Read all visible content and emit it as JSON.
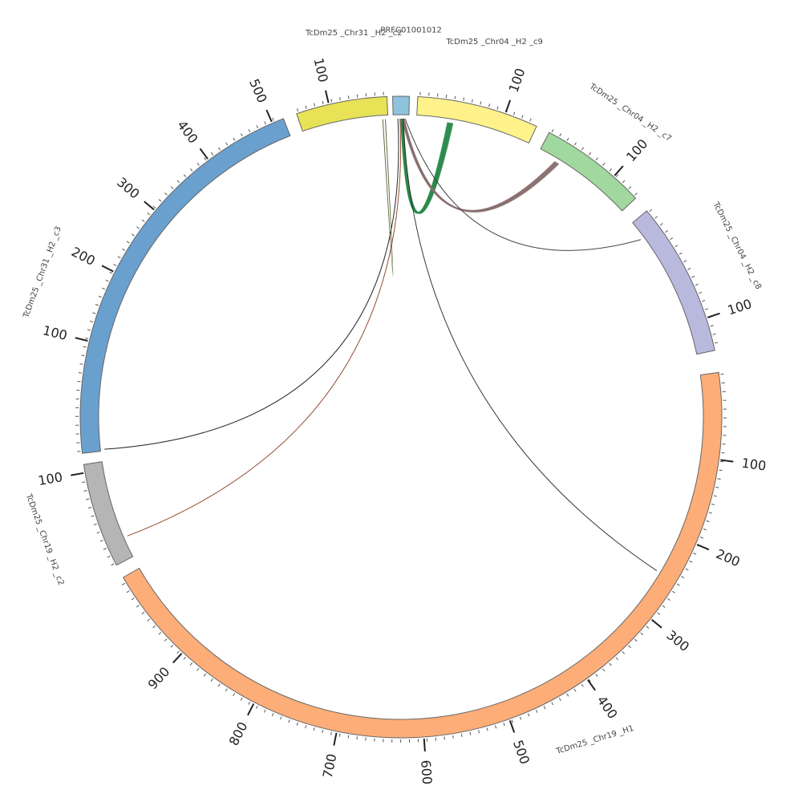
{
  "diagram": {
    "type": "circos",
    "segments": [
      {
        "id": "sc",
        "name": "PRFC01001012",
        "color": "#8ec3dd",
        "length": 12,
        "tick_labels": []
      },
      {
        "id": "c9",
        "name": "TcDm25 _Chr04 _H2 _c9",
        "color": "#fff28a",
        "length": 150,
        "tick_labels": [
          "100"
        ]
      },
      {
        "id": "c7",
        "name": "TcDm25 _Chr04 _H2 _c7",
        "color": "#a1d89f",
        "length": 120,
        "tick_labels": [
          "100"
        ]
      },
      {
        "id": "c8",
        "name": "TcDm25 _Chr04 _H2 _c8",
        "color": "#b9b8dd",
        "length": 160,
        "tick_labels": [
          "100"
        ]
      },
      {
        "id": "h1",
        "name": "TcDm25 _Chr19 _H1",
        "color": "#fdad78",
        "length": 1010,
        "tick_labels": [
          "100",
          "200",
          "300",
          "400",
          "500",
          "600",
          "700",
          "800",
          "900"
        ]
      },
      {
        "id": "c2b",
        "name": "TcDm25 _Chr19 _H2 _c2",
        "color": "#b5b5b5",
        "length": 130,
        "tick_labels": [
          "100"
        ]
      },
      {
        "id": "c3",
        "name": "TcDm25 _Chr31 _H2 _c3",
        "color": "#6aa0ce",
        "length": 560,
        "tick_labels": [
          "100",
          "200",
          "300",
          "400",
          "500"
        ]
      },
      {
        "id": "c2a",
        "name": "TcDm25 _Chr31 _H2 _c2",
        "color": "#e8e257",
        "length": 130,
        "tick_labels": [
          "100"
        ]
      }
    ],
    "links": [
      {
        "from": "sc",
        "to": "c9",
        "color": "#2a8a4a",
        "count": 6
      },
      {
        "from": "sc",
        "to": "c7",
        "color": "#8a6f6f",
        "count": 5
      },
      {
        "from": "sc",
        "to": "c8",
        "color": "#333333",
        "count": 1
      },
      {
        "from": "sc",
        "to": "h1",
        "color": "#222222",
        "count": 1
      },
      {
        "from": "sc",
        "to": "c3",
        "color": "#111111",
        "count": 1
      },
      {
        "from": "sc",
        "to": "c2b",
        "color": "#8a3b1e",
        "count": 1
      },
      {
        "from": "sc",
        "to": "c2a",
        "color": "#4a5a2a",
        "count": 1
      }
    ]
  }
}
